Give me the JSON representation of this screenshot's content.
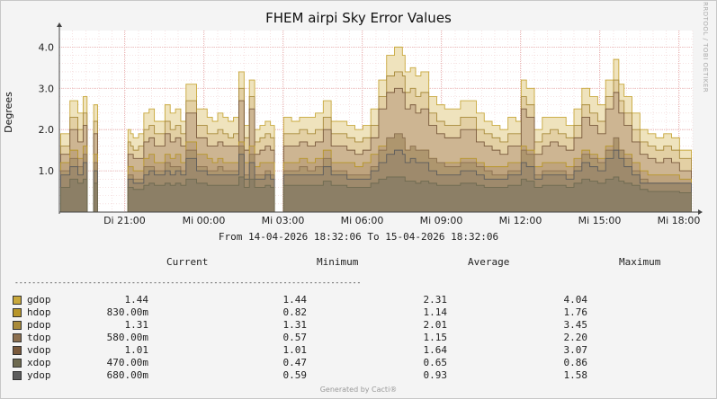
{
  "title": "FHEM airpi Sky Error Values",
  "side_label": "RRDTOOL / TOBI OETIKER",
  "footer": "Generated by Cacti®",
  "range_text": "From 14-04-2026 18:32:06 To 15-04-2026 18:32:06",
  "headers": {
    "current": "Current",
    "minimum": "Minimum",
    "average": "Average",
    "maximum": "Maximum"
  },
  "separator": "--------------------------------------------------------------------------------",
  "colors": {
    "gdop": "#c8a83c",
    "hdop": "#b8962a",
    "pdop": "#a88a3a",
    "tdop": "#8c7050",
    "vdop": "#7a5a3c",
    "xdop": "#6e6a50",
    "ydop": "#5c5c5c",
    "grid": "#e6a8a8",
    "area": "#e8d9a8"
  },
  "legend": [
    {
      "name": "gdop",
      "current": "1.44",
      "minimum": "1.44",
      "average": "2.31",
      "maximum": "4.04"
    },
    {
      "name": "hdop",
      "current": "830.00m",
      "minimum": "0.82",
      "average": "1.14",
      "maximum": "1.76"
    },
    {
      "name": "pdop",
      "current": "1.31",
      "minimum": "1.31",
      "average": "2.01",
      "maximum": "3.45"
    },
    {
      "name": "tdop",
      "current": "580.00m",
      "minimum": "0.57",
      "average": "1.15",
      "maximum": "2.20"
    },
    {
      "name": "vdop",
      "current": "1.01",
      "minimum": "1.01",
      "average": "1.64",
      "maximum": "3.07"
    },
    {
      "name": "xdop",
      "current": "470.00m",
      "minimum": "0.47",
      "average": "0.65",
      "maximum": "0.86"
    },
    {
      "name": "ydop",
      "current": "680.00m",
      "minimum": "0.59",
      "average": "0.93",
      "maximum": "1.58"
    }
  ],
  "chart_data": {
    "type": "area",
    "title": "FHEM airpi Sky Error Values",
    "ylabel": "Degrees",
    "xlabel": "",
    "ylim": [
      0,
      4.4
    ],
    "yticks": [
      "1.0",
      "2.0",
      "3.0",
      "4.0"
    ],
    "ytick_values": [
      1.0,
      2.0,
      3.0,
      4.0
    ],
    "xlim_hours": [
      0,
      24
    ],
    "xticks": [
      "Di 21:00",
      "Mi 00:00",
      "Mi 03:00",
      "Mi 06:00",
      "Mi 09:00",
      "Mi 12:00",
      "Mi 15:00",
      "Mi 18:00"
    ],
    "xtick_hours": [
      2.47,
      5.47,
      8.47,
      11.47,
      14.47,
      17.47,
      20.47,
      23.47
    ],
    "grid": true,
    "x_hours": [
      0.05,
      0.4,
      0.7,
      0.9,
      1.0,
      1.3,
      1.5,
      1.7,
      2.1,
      2.6,
      2.7,
      2.8,
      3.0,
      3.2,
      3.4,
      3.6,
      3.8,
      4.0,
      4.2,
      4.4,
      4.6,
      4.8,
      5.0,
      5.2,
      5.4,
      5.6,
      5.8,
      6.0,
      6.2,
      6.4,
      6.6,
      6.8,
      7.0,
      7.2,
      7.4,
      7.6,
      7.8,
      8.0,
      8.2,
      8.5,
      8.8,
      9.1,
      9.4,
      9.7,
      10.0,
      10.3,
      10.6,
      10.9,
      11.2,
      11.5,
      11.8,
      12.1,
      12.4,
      12.7,
      13.0,
      13.1,
      13.3,
      13.5,
      13.7,
      14.0,
      14.3,
      14.6,
      14.9,
      15.2,
      15.5,
      15.8,
      16.1,
      16.4,
      16.7,
      17.0,
      17.3,
      17.5,
      17.7,
      18.0,
      18.3,
      18.6,
      18.9,
      19.2,
      19.5,
      19.8,
      20.1,
      20.4,
      20.7,
      21.0,
      21.2,
      21.4,
      21.7,
      22.0,
      22.3,
      22.6,
      22.9,
      23.2,
      23.5,
      23.8
    ],
    "series": [
      {
        "name": "gdop",
        "values": [
          1.9,
          2.7,
          2.4,
          2.8,
          2.0,
          2.6,
          2.5,
          2.5,
          1.9,
          2.0,
          1.9,
          1.8,
          1.9,
          2.4,
          2.5,
          2.2,
          2.2,
          2.6,
          2.4,
          2.5,
          2.2,
          3.1,
          3.1,
          2.5,
          2.5,
          2.3,
          2.2,
          2.4,
          2.3,
          2.2,
          2.3,
          3.4,
          2.1,
          3.2,
          2.0,
          2.1,
          2.2,
          2.1,
          2.1,
          2.3,
          2.2,
          2.3,
          2.3,
          2.4,
          2.7,
          2.2,
          2.2,
          2.1,
          2.0,
          2.1,
          2.5,
          3.2,
          3.8,
          4.0,
          3.8,
          3.4,
          3.5,
          3.3,
          3.4,
          2.8,
          2.6,
          2.5,
          2.5,
          2.7,
          2.7,
          2.4,
          2.2,
          2.1,
          2.0,
          2.3,
          2.2,
          3.2,
          3.0,
          2.0,
          2.3,
          2.3,
          2.3,
          2.1,
          2.5,
          3.0,
          2.8,
          2.6,
          3.2,
          3.7,
          3.1,
          2.8,
          2.4,
          2.0,
          1.9,
          1.8,
          1.9,
          1.8,
          1.5,
          1.5
        ]
      },
      {
        "name": "pdop",
        "values": [
          1.6,
          2.3,
          2.0,
          2.4,
          1.7,
          2.2,
          2.1,
          2.1,
          1.6,
          1.7,
          1.6,
          1.5,
          1.6,
          2.0,
          2.1,
          1.9,
          1.9,
          2.2,
          2.0,
          2.1,
          1.9,
          2.7,
          2.7,
          2.1,
          2.1,
          1.9,
          1.9,
          2.0,
          1.9,
          1.8,
          1.9,
          3.0,
          1.8,
          2.8,
          1.7,
          1.8,
          1.9,
          1.8,
          1.8,
          1.9,
          1.9,
          2.0,
          1.9,
          2.0,
          2.3,
          1.9,
          1.9,
          1.8,
          1.7,
          1.8,
          2.1,
          2.8,
          3.3,
          3.4,
          3.3,
          2.9,
          3.0,
          2.8,
          2.9,
          2.4,
          2.2,
          2.1,
          2.1,
          2.3,
          2.3,
          2.0,
          1.9,
          1.8,
          1.7,
          1.9,
          1.9,
          2.8,
          2.6,
          1.7,
          1.9,
          2.0,
          1.9,
          1.8,
          2.1,
          2.6,
          2.4,
          2.2,
          2.8,
          3.2,
          2.7,
          2.4,
          2.0,
          1.7,
          1.6,
          1.5,
          1.6,
          1.5,
          1.3,
          1.3
        ]
      },
      {
        "name": "vdop",
        "values": [
          1.4,
          2.0,
          1.7,
          2.1,
          1.4,
          1.9,
          1.8,
          1.8,
          1.4,
          1.4,
          1.4,
          1.3,
          1.3,
          1.7,
          1.8,
          1.6,
          1.6,
          1.9,
          1.7,
          1.8,
          1.6,
          2.4,
          2.4,
          1.8,
          1.8,
          1.6,
          1.6,
          1.7,
          1.6,
          1.6,
          1.6,
          2.7,
          1.5,
          2.5,
          1.4,
          1.5,
          1.6,
          1.5,
          1.5,
          1.6,
          1.6,
          1.7,
          1.6,
          1.7,
          2.0,
          1.6,
          1.6,
          1.5,
          1.4,
          1.5,
          1.8,
          2.5,
          2.9,
          3.0,
          2.9,
          2.5,
          2.6,
          2.4,
          2.5,
          2.1,
          1.9,
          1.8,
          1.8,
          2.0,
          2.0,
          1.7,
          1.6,
          1.5,
          1.4,
          1.6,
          1.6,
          2.5,
          2.3,
          1.4,
          1.6,
          1.7,
          1.6,
          1.5,
          1.8,
          2.3,
          2.1,
          1.9,
          2.5,
          2.9,
          2.4,
          2.1,
          1.7,
          1.4,
          1.3,
          1.2,
          1.3,
          1.2,
          1.0,
          1.0
        ]
      },
      {
        "name": "hdop",
        "values": [
          1.2,
          1.5,
          1.3,
          1.6,
          1.1,
          1.4,
          1.4,
          1.4,
          1.1,
          1.1,
          1.1,
          1.0,
          1.0,
          1.3,
          1.4,
          1.2,
          1.2,
          1.4,
          1.3,
          1.4,
          1.2,
          1.7,
          1.7,
          1.4,
          1.4,
          1.3,
          1.2,
          1.3,
          1.2,
          1.2,
          1.2,
          1.7,
          1.2,
          1.6,
          1.1,
          1.2,
          1.2,
          1.2,
          1.2,
          1.2,
          1.2,
          1.3,
          1.2,
          1.3,
          1.5,
          1.2,
          1.2,
          1.2,
          1.1,
          1.2,
          1.4,
          1.6,
          1.7,
          1.7,
          1.7,
          1.5,
          1.5,
          1.4,
          1.5,
          1.3,
          1.2,
          1.2,
          1.2,
          1.3,
          1.3,
          1.2,
          1.1,
          1.1,
          1.1,
          1.2,
          1.2,
          1.6,
          1.5,
          1.1,
          1.2,
          1.2,
          1.2,
          1.1,
          1.3,
          1.5,
          1.4,
          1.3,
          1.6,
          1.7,
          1.5,
          1.4,
          1.2,
          1.0,
          0.9,
          0.9,
          0.9,
          0.9,
          0.8,
          0.8
        ]
      },
      {
        "name": "tdop",
        "values": [
          1.0,
          1.3,
          1.1,
          1.4,
          0.9,
          1.2,
          1.1,
          1.1,
          0.9,
          0.9,
          0.9,
          0.8,
          0.8,
          1.1,
          1.1,
          1.0,
          1.0,
          1.2,
          1.1,
          1.1,
          1.0,
          1.5,
          1.5,
          1.1,
          1.1,
          1.0,
          1.0,
          1.1,
          1.0,
          1.0,
          1.0,
          1.6,
          0.9,
          1.4,
          0.9,
          0.9,
          1.0,
          0.9,
          0.9,
          1.0,
          1.0,
          1.1,
          1.0,
          1.1,
          1.3,
          1.0,
          1.0,
          0.9,
          0.9,
          0.9,
          1.1,
          1.5,
          1.8,
          1.9,
          1.8,
          1.5,
          1.6,
          1.5,
          1.5,
          1.3,
          1.2,
          1.1,
          1.1,
          1.2,
          1.2,
          1.1,
          1.0,
          0.9,
          0.9,
          1.0,
          1.0,
          1.5,
          1.4,
          0.9,
          1.0,
          1.0,
          1.0,
          0.9,
          1.1,
          1.4,
          1.3,
          1.2,
          1.5,
          1.8,
          1.5,
          1.3,
          1.0,
          0.8,
          0.7,
          0.7,
          0.7,
          0.7,
          0.6,
          0.6
        ]
      },
      {
        "name": "ydop",
        "values": [
          0.9,
          1.1,
          0.9,
          1.2,
          0.8,
          1.0,
          1.0,
          1.0,
          0.8,
          0.8,
          0.8,
          0.7,
          0.7,
          0.9,
          1.0,
          0.9,
          0.9,
          1.0,
          0.9,
          1.0,
          0.9,
          1.3,
          1.3,
          1.0,
          1.0,
          0.9,
          0.9,
          0.9,
          0.9,
          0.9,
          0.9,
          1.4,
          0.8,
          1.2,
          0.8,
          0.8,
          0.9,
          0.8,
          0.8,
          0.9,
          0.9,
          0.9,
          0.9,
          0.9,
          1.1,
          0.9,
          0.9,
          0.8,
          0.8,
          0.8,
          1.0,
          1.2,
          1.4,
          1.5,
          1.4,
          1.2,
          1.3,
          1.2,
          1.2,
          1.0,
          0.9,
          0.9,
          0.9,
          1.0,
          1.0,
          0.9,
          0.8,
          0.8,
          0.8,
          0.9,
          0.9,
          1.2,
          1.1,
          0.8,
          0.9,
          0.9,
          0.9,
          0.8,
          1.0,
          1.2,
          1.1,
          1.0,
          1.3,
          1.5,
          1.3,
          1.1,
          0.9,
          0.7,
          0.7,
          0.7,
          0.7,
          0.7,
          0.7,
          0.7
        ]
      },
      {
        "name": "xdop",
        "values": [
          0.6,
          0.8,
          0.7,
          0.8,
          0.6,
          0.7,
          0.7,
          0.7,
          0.6,
          0.6,
          0.6,
          0.55,
          0.55,
          0.65,
          0.7,
          0.65,
          0.65,
          0.7,
          0.65,
          0.7,
          0.65,
          0.8,
          0.8,
          0.7,
          0.7,
          0.65,
          0.65,
          0.65,
          0.65,
          0.65,
          0.65,
          0.85,
          0.6,
          0.8,
          0.6,
          0.6,
          0.65,
          0.6,
          0.6,
          0.65,
          0.65,
          0.65,
          0.65,
          0.65,
          0.75,
          0.65,
          0.65,
          0.6,
          0.6,
          0.6,
          0.7,
          0.8,
          0.85,
          0.85,
          0.85,
          0.75,
          0.75,
          0.7,
          0.75,
          0.7,
          0.65,
          0.65,
          0.65,
          0.7,
          0.7,
          0.65,
          0.6,
          0.6,
          0.6,
          0.65,
          0.65,
          0.8,
          0.75,
          0.6,
          0.65,
          0.65,
          0.65,
          0.6,
          0.7,
          0.8,
          0.75,
          0.7,
          0.8,
          0.85,
          0.75,
          0.7,
          0.65,
          0.55,
          0.5,
          0.5,
          0.5,
          0.5,
          0.47,
          0.47
        ]
      }
    ],
    "gaps_hours": [
      [
        0.95,
        1.05
      ],
      [
        1.15,
        1.22
      ],
      [
        1.35,
        2.55
      ],
      [
        8.15,
        8.25
      ],
      [
        17.55,
        17.62
      ],
      [
        21.05,
        21.12
      ]
    ]
  }
}
